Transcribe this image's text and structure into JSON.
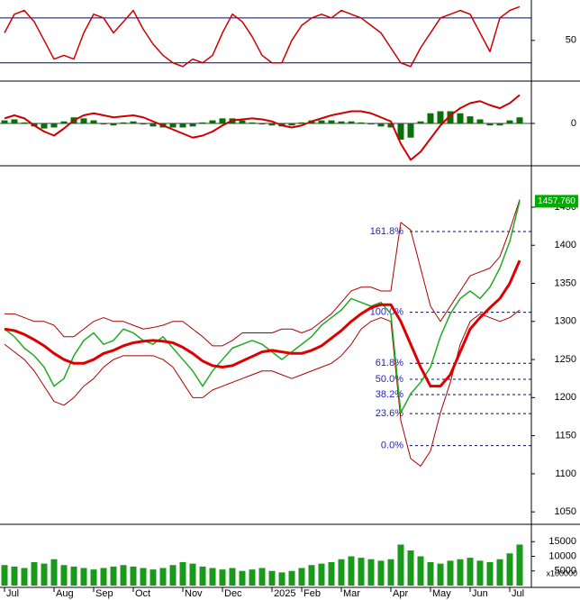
{
  "chart_data": [
    {
      "type": "line",
      "ylim": [
        -2,
        104
      ],
      "yticks": [
        50
      ],
      "levels": [
        20,
        80
      ],
      "level_color": "#00008b",
      "series": [
        {
          "color": "#cc0000",
          "values": [
            60,
            85,
            90,
            75,
            50,
            25,
            30,
            25,
            60,
            85,
            80,
            60,
            75,
            90,
            65,
            45,
            30,
            20,
            15,
            25,
            20,
            30,
            60,
            85,
            75,
            55,
            30,
            20,
            20,
            50,
            70,
            80,
            85,
            80,
            90,
            85,
            80,
            70,
            60,
            40,
            20,
            15,
            40,
            60,
            80,
            85,
            90,
            85,
            60,
            35,
            80,
            90,
            95
          ]
        }
      ]
    },
    {
      "type": "combo",
      "ylim": [
        -40,
        40
      ],
      "yticks": [
        0
      ],
      "series": [
        {
          "style": "bar",
          "color": "#0a6e0a",
          "values": [
            3,
            4,
            1,
            -3,
            -5,
            -4,
            2,
            6,
            5,
            3,
            -1,
            -2,
            1,
            2,
            -1,
            -3,
            -4,
            -4,
            -4,
            -3,
            1,
            3,
            5,
            5,
            3,
            1,
            -1,
            -2,
            -3,
            -2,
            1,
            3,
            3,
            3,
            2,
            2,
            1,
            -1,
            -3,
            -4,
            -16,
            -14,
            2,
            10,
            12,
            12,
            10,
            7,
            4,
            -2,
            -2,
            3,
            6
          ]
        },
        {
          "style": "line",
          "color": "#cc0000",
          "values": [
            5,
            8,
            5,
            -2,
            -8,
            -12,
            -5,
            3,
            8,
            10,
            8,
            6,
            7,
            8,
            6,
            2,
            -2,
            -6,
            -10,
            -14,
            -12,
            -8,
            -2,
            3,
            4,
            5,
            4,
            2,
            -2,
            -4,
            -2,
            2,
            5,
            8,
            10,
            12,
            12,
            10,
            6,
            2,
            -20,
            -36,
            -28,
            -15,
            -2,
            8,
            15,
            20,
            22,
            18,
            15,
            20,
            28
          ]
        }
      ]
    },
    {
      "type": "line",
      "ylim": [
        1036,
        1502
      ],
      "yticks": [
        1050,
        1100,
        1150,
        1200,
        1250,
        1300,
        1350,
        1400,
        1450
      ],
      "last_price": {
        "value": 1457.76,
        "label": "1457.760"
      },
      "last_color": "#00aa00",
      "fib_color": "#00008b",
      "fib_levels": [
        {
          "value": 1418,
          "label": "161.8%"
        },
        {
          "value": 1312,
          "label": "100.0%"
        },
        {
          "value": 1245,
          "label": "61.8%"
        },
        {
          "value": 1224,
          "label": "50.0%"
        },
        {
          "value": 1204,
          "label": "38.2%"
        },
        {
          "value": 1179,
          "label": "23.6%"
        },
        {
          "value": 1137,
          "label": "0.0%"
        }
      ],
      "series": [
        {
          "width": 1,
          "color": "#aa0000",
          "values": [
            1310,
            1310,
            1305,
            1300,
            1300,
            1295,
            1280,
            1280,
            1290,
            1300,
            1305,
            1300,
            1300,
            1295,
            1290,
            1292,
            1295,
            1300,
            1300,
            1290,
            1280,
            1268,
            1268,
            1275,
            1285,
            1285,
            1285,
            1285,
            1290,
            1290,
            1285,
            1290,
            1300,
            1310,
            1325,
            1340,
            1345,
            1345,
            1340,
            1340,
            1430,
            1420,
            1370,
            1320,
            1300,
            1320,
            1340,
            1360,
            1365,
            1370,
            1385,
            1420,
            1460
          ]
        },
        {
          "width": 1,
          "color": "#aa0000",
          "values": [
            1270,
            1260,
            1250,
            1235,
            1215,
            1195,
            1190,
            1200,
            1215,
            1225,
            1240,
            1250,
            1255,
            1255,
            1255,
            1255,
            1250,
            1240,
            1220,
            1200,
            1200,
            1210,
            1215,
            1220,
            1225,
            1230,
            1235,
            1235,
            1230,
            1225,
            1230,
            1235,
            1240,
            1245,
            1255,
            1270,
            1290,
            1300,
            1305,
            1300,
            1170,
            1120,
            1110,
            1130,
            1180,
            1220,
            1270,
            1300,
            1310,
            1305,
            1300,
            1305,
            1315
          ]
        },
        {
          "width": 1.5,
          "color": "#22aa22",
          "values": [
            1290,
            1280,
            1265,
            1255,
            1240,
            1215,
            1225,
            1255,
            1275,
            1285,
            1270,
            1275,
            1290,
            1285,
            1275,
            1270,
            1280,
            1265,
            1250,
            1235,
            1215,
            1235,
            1250,
            1265,
            1270,
            1275,
            1270,
            1260,
            1250,
            1260,
            1270,
            1280,
            1295,
            1305,
            1315,
            1330,
            1325,
            1320,
            1325,
            1310,
            1180,
            1205,
            1220,
            1240,
            1280,
            1310,
            1330,
            1340,
            1330,
            1345,
            1370,
            1405,
            1458
          ]
        },
        {
          "width": 3,
          "color": "#dd0000",
          "values": [
            1290,
            1288,
            1283,
            1276,
            1268,
            1258,
            1250,
            1245,
            1245,
            1250,
            1258,
            1262,
            1268,
            1272,
            1274,
            1275,
            1274,
            1272,
            1266,
            1258,
            1248,
            1242,
            1240,
            1242,
            1248,
            1254,
            1260,
            1262,
            1260,
            1258,
            1258,
            1262,
            1268,
            1278,
            1288,
            1300,
            1310,
            1318,
            1322,
            1322,
            1300,
            1270,
            1240,
            1215,
            1215,
            1230,
            1260,
            1290,
            1305,
            1318,
            1330,
            1350,
            1380
          ]
        }
      ]
    },
    {
      "type": "bar",
      "ylim": [
        0,
        20300
      ],
      "yticks": [
        5000,
        10000,
        15000
      ],
      "unit_label": "x100000",
      "categories": [
        "Jul",
        null,
        null,
        null,
        null,
        "Aug",
        null,
        null,
        null,
        "Sep",
        null,
        null,
        null,
        "Oct",
        null,
        null,
        null,
        null,
        "Nov",
        null,
        null,
        null,
        "Dec",
        null,
        null,
        null,
        null,
        "2025",
        null,
        null,
        "Feb",
        null,
        null,
        null,
        "Mar",
        null,
        null,
        null,
        null,
        "Apr",
        null,
        null,
        null,
        "May",
        null,
        null,
        null,
        "Jun",
        null,
        null,
        null,
        "Jul",
        null
      ],
      "series": [
        {
          "color": "#1a9a1a",
          "values": [
            7000,
            6500,
            6000,
            8000,
            7500,
            9000,
            7000,
            6500,
            6000,
            5500,
            6000,
            6500,
            7000,
            6500,
            6000,
            5500,
            6000,
            7000,
            8000,
            7500,
            6500,
            6000,
            5500,
            6000,
            5000,
            5500,
            6000,
            5000,
            4500,
            5000,
            6000,
            7000,
            7500,
            8000,
            9000,
            10000,
            9500,
            9000,
            8500,
            9000,
            14000,
            12000,
            10000,
            8000,
            7500,
            8500,
            9000,
            9500,
            8500,
            8000,
            9000,
            11000,
            14000
          ]
        }
      ]
    }
  ]
}
